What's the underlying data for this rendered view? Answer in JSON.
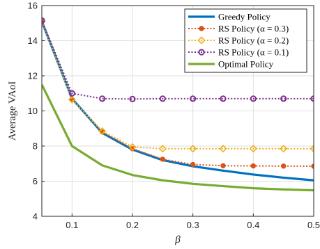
{
  "chart_data": {
    "type": "line",
    "xlabel": "β",
    "ylabel": "Average VAoI",
    "xlim": [
      0.05,
      0.5
    ],
    "ylim": [
      4,
      16
    ],
    "x_ticks": [
      0.1,
      0.2,
      0.3,
      0.4,
      0.5
    ],
    "x_tick_labels": [
      "0.1",
      "0.2",
      "0.3",
      "0.4",
      "0.5"
    ],
    "y_ticks": [
      4,
      6,
      8,
      10,
      12,
      14,
      16
    ],
    "y_tick_labels": [
      "4",
      "6",
      "8",
      "10",
      "12",
      "14",
      "16"
    ],
    "grid": true,
    "legend_position": "top-right",
    "x": [
      0.05,
      0.1,
      0.15,
      0.2,
      0.25,
      0.3,
      0.35,
      0.4,
      0.45,
      0.5
    ],
    "series": [
      {
        "name": "Greedy Policy",
        "color": "#0072bd",
        "style": "solid-thick",
        "marker": "none",
        "values": [
          15.1,
          10.7,
          8.75,
          7.8,
          7.2,
          6.85,
          6.6,
          6.38,
          6.2,
          6.05
        ]
      },
      {
        "name": "RS Policy (α = 0.3)",
        "color": "#d95319",
        "style": "dotted",
        "marker": "dot",
        "values": [
          15.1,
          10.65,
          8.8,
          7.85,
          7.25,
          6.95,
          6.88,
          6.87,
          6.86,
          6.85
        ]
      },
      {
        "name": "RS Policy (α = 0.2)",
        "color": "#edb120",
        "style": "dotted",
        "marker": "diamond",
        "values": [
          15.1,
          10.65,
          8.85,
          7.95,
          7.85,
          7.85,
          7.85,
          7.85,
          7.85,
          7.85
        ]
      },
      {
        "name": "RS Policy (α = 0.1)",
        "color": "#7e2f8e",
        "style": "dotted",
        "marker": "circle",
        "values": [
          15.15,
          11.0,
          10.7,
          10.68,
          10.7,
          10.7,
          10.7,
          10.7,
          10.7,
          10.7
        ]
      },
      {
        "name": "Optimal Policy",
        "color": "#77ac30",
        "style": "solid-thick",
        "marker": "none",
        "values": [
          11.5,
          8.0,
          6.9,
          6.35,
          6.05,
          5.85,
          5.72,
          5.6,
          5.53,
          5.48
        ]
      }
    ]
  }
}
